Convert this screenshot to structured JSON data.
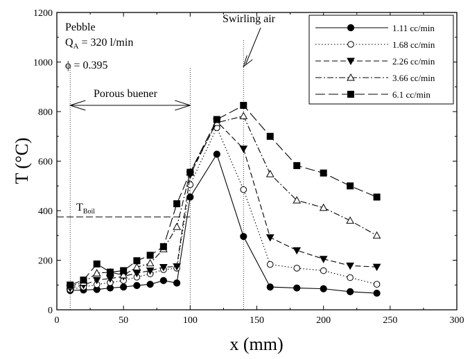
{
  "chart_data": {
    "type": "line",
    "xlabel": "x (mm)",
    "ylabel": "T (°C)",
    "xlim": [
      0,
      300
    ],
    "ylim": [
      0,
      1200
    ],
    "xticks": [
      0,
      50,
      100,
      150,
      200,
      250,
      300
    ],
    "yticks": [
      0,
      200,
      400,
      600,
      800,
      1000,
      1200
    ],
    "grid": false,
    "legend": "top-right",
    "series": [
      {
        "name": "1.11 cc/min",
        "marker": "filled-circle",
        "dash": "solid",
        "points": [
          [
            10,
            78
          ],
          [
            20,
            80
          ],
          [
            30,
            82
          ],
          [
            40,
            88
          ],
          [
            50,
            92
          ],
          [
            60,
            98
          ],
          [
            70,
            103
          ],
          [
            80,
            118
          ],
          [
            90,
            108
          ],
          [
            100,
            455
          ],
          [
            120,
            628
          ],
          [
            140,
            296
          ],
          [
            160,
            92
          ],
          [
            180,
            88
          ],
          [
            200,
            85
          ],
          [
            220,
            73
          ],
          [
            240,
            67
          ]
        ]
      },
      {
        "name": "1.68 cc/min",
        "marker": "open-circle",
        "dash": "dotted",
        "points": [
          [
            10,
            82
          ],
          [
            20,
            92
          ],
          [
            30,
            102
          ],
          [
            40,
            110
          ],
          [
            50,
            118
          ],
          [
            60,
            132
          ],
          [
            70,
            145
          ],
          [
            80,
            162
          ],
          [
            90,
            168
          ],
          [
            100,
            505
          ],
          [
            120,
            735
          ],
          [
            140,
            485
          ],
          [
            160,
            183
          ],
          [
            180,
            168
          ],
          [
            200,
            158
          ],
          [
            220,
            130
          ],
          [
            240,
            103
          ]
        ]
      },
      {
        "name": "2.26 cc/min",
        "marker": "filled-triangle-down",
        "dash": "dashed",
        "points": [
          [
            10,
            88
          ],
          [
            20,
            100
          ],
          [
            30,
            120
          ],
          [
            40,
            126
          ],
          [
            50,
            135
          ],
          [
            60,
            148
          ],
          [
            70,
            158
          ],
          [
            80,
            172
          ],
          [
            90,
            175
          ],
          [
            100,
            545
          ],
          [
            120,
            760
          ],
          [
            140,
            650
          ],
          [
            160,
            292
          ],
          [
            180,
            240
          ],
          [
            200,
            205
          ],
          [
            220,
            178
          ],
          [
            240,
            173
          ]
        ]
      },
      {
        "name": "3.66 cc/min",
        "marker": "open-triangle-up",
        "dash": "dashdot",
        "points": [
          [
            10,
            95
          ],
          [
            20,
            110
          ],
          [
            30,
            148
          ],
          [
            40,
            152
          ],
          [
            50,
            140
          ],
          [
            60,
            172
          ],
          [
            70,
            188
          ],
          [
            80,
            245
          ],
          [
            90,
            335
          ],
          [
            100,
            555
          ],
          [
            120,
            755
          ],
          [
            140,
            782
          ],
          [
            160,
            548
          ],
          [
            180,
            442
          ],
          [
            200,
            412
          ],
          [
            220,
            360
          ],
          [
            240,
            300
          ]
        ]
      },
      {
        "name": "6.1 cc/min",
        "marker": "filled-square",
        "dash": "longdash",
        "points": [
          [
            10,
            100
          ],
          [
            20,
            120
          ],
          [
            30,
            185
          ],
          [
            40,
            152
          ],
          [
            50,
            158
          ],
          [
            60,
            198
          ],
          [
            70,
            220
          ],
          [
            80,
            255
          ],
          [
            90,
            428
          ],
          [
            100,
            555
          ],
          [
            120,
            768
          ],
          [
            140,
            825
          ],
          [
            160,
            700
          ],
          [
            180,
            582
          ],
          [
            200,
            552
          ],
          [
            220,
            500
          ],
          [
            240,
            455
          ]
        ]
      }
    ],
    "annotations": {
      "pebble": "Pebble",
      "qa_main": "Q",
      "qa_sub": "A",
      "qa_rest": " = 320 l/min",
      "phi": "ϕ  = 0.395",
      "porous": "Porous buener",
      "swirl": "Swirling air",
      "tboil_main": "T",
      "tboil_sub": "Boil"
    },
    "reference_lines": {
      "tboil_y": 375,
      "tboil_x_end": 100,
      "porous_x_start": 10,
      "porous_x_end": 100,
      "swirl_x": 140
    }
  }
}
